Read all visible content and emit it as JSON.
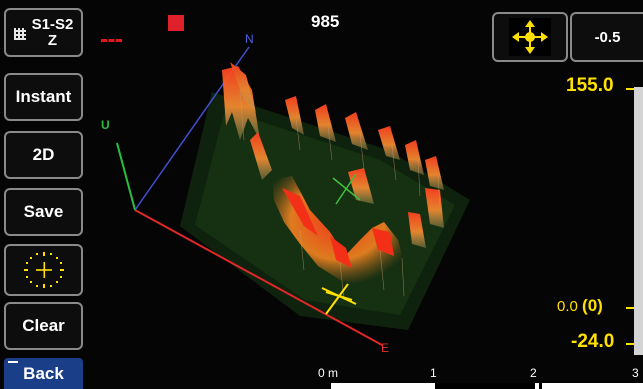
{
  "sidebar": {
    "s1s2_top": "S1-S2",
    "s1s2_bottom": "Z",
    "instant": "Instant",
    "mode_2d": "2D",
    "save": "Save",
    "clear": "Clear",
    "back": "Back"
  },
  "header": {
    "counter": "985",
    "offset": "-0.5"
  },
  "scale": {
    "top": "155.0",
    "zero_value": "0.0",
    "zero_marker": "(0)",
    "min": "-24.0"
  },
  "axes": {
    "north": "N",
    "up": "U",
    "east": "E"
  },
  "ruler": {
    "labels": [
      "0 m",
      "1",
      "2",
      "3"
    ]
  },
  "colors": {
    "accent_yellow": "#ffe000",
    "back_blue": "#1b3e88",
    "axis_red": "#e03030",
    "axis_blue": "#5060e0",
    "axis_green": "#28c040"
  },
  "icons": [
    "grid-icon",
    "move-arrows-icon",
    "crosshair-target-icon"
  ]
}
